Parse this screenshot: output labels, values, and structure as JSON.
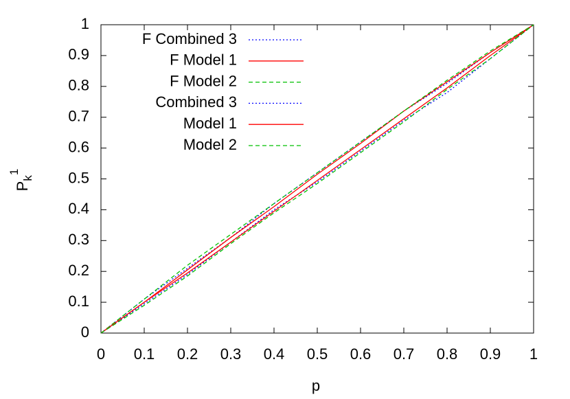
{
  "chart_data": {
    "type": "line",
    "xlabel": "p",
    "ylabel": [
      "P",
      "k",
      "1"
    ],
    "x": [
      0,
      0.1,
      0.2,
      0.3,
      0.4,
      0.5,
      0.6,
      0.7,
      0.8,
      0.9,
      1
    ],
    "series": [
      {
        "name": "F Combined 3",
        "color": "#0000ff",
        "dash": "dotted",
        "values": [
          0,
          0.11,
          0.21,
          0.31,
          0.42,
          0.52,
          0.62,
          0.72,
          0.81,
          0.91,
          1
        ]
      },
      {
        "name": "F Model 1",
        "color": "#ff0000",
        "dash": "solid",
        "values": [
          0,
          0.1,
          0.205,
          0.31,
          0.41,
          0.515,
          0.615,
          0.72,
          0.815,
          0.91,
          1
        ]
      },
      {
        "name": "F Model 2",
        "color": "#00c000",
        "dash": "dashed",
        "values": [
          0,
          0.11,
          0.22,
          0.32,
          0.42,
          0.52,
          0.62,
          0.72,
          0.82,
          0.915,
          1
        ]
      },
      {
        "name": "Combined 3",
        "color": "#0000ff",
        "dash": "dotted",
        "values": [
          0,
          0.095,
          0.19,
          0.295,
          0.4,
          0.49,
          0.59,
          0.69,
          0.78,
          0.89,
          1
        ]
      },
      {
        "name": "Model 1",
        "color": "#ff0000",
        "dash": "solid",
        "values": [
          0,
          0.1,
          0.195,
          0.295,
          0.395,
          0.495,
          0.595,
          0.695,
          0.795,
          0.9,
          1
        ]
      },
      {
        "name": "Model 2",
        "color": "#00c000",
        "dash": "dashed",
        "values": [
          0,
          0.09,
          0.185,
          0.29,
          0.39,
          0.485,
          0.585,
          0.685,
          0.79,
          0.89,
          1
        ]
      }
    ],
    "xlim": [
      0,
      1
    ],
    "ylim": [
      0,
      1
    ],
    "xticks": [
      0,
      0.1,
      0.2,
      0.3,
      0.4,
      0.5,
      0.6,
      0.7,
      0.8,
      0.9,
      1
    ],
    "yticks": [
      0,
      0.1,
      0.2,
      0.3,
      0.4,
      0.5,
      0.6,
      0.7,
      0.8,
      0.9,
      1
    ],
    "grid": false,
    "legend": "top-left"
  }
}
